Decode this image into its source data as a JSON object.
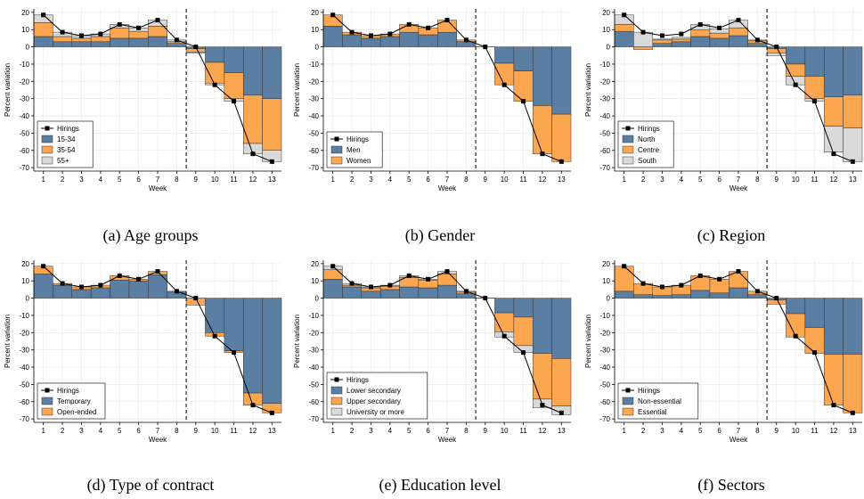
{
  "colors": {
    "blue": "#5b7fa3",
    "orange": "#fca64f",
    "grey": "#d9d9d9",
    "line": "#000000",
    "grid": "#e6e6e6"
  },
  "chart_data": [
    {
      "type": "bar",
      "caption": "(a) Age groups",
      "xlabel": "Week",
      "ylabel": "Percent variation",
      "ylim": [
        -72,
        22
      ],
      "yticks": [
        20,
        10,
        0,
        -10,
        -20,
        -30,
        -40,
        -50,
        -60,
        -70
      ],
      "categories": [
        "1",
        "2",
        "3",
        "4",
        "5",
        "6",
        "7",
        "8",
        "9",
        "10",
        "11",
        "12",
        "13"
      ],
      "vline_after": 8,
      "legend_position": "bottom-left",
      "line": {
        "name": "Hirings",
        "values": [
          18.5,
          8.5,
          6.5,
          7.5,
          13,
          11,
          15.5,
          4,
          0,
          -22,
          -31.5,
          -62,
          -66.5
        ]
      },
      "series": [
        {
          "name": "15-34",
          "color": "blue",
          "values": [
            6,
            3,
            3,
            3,
            5,
            5,
            6,
            2,
            -1,
            -9,
            -15,
            -28,
            -30
          ]
        },
        {
          "name": "35-54",
          "color": "orange",
          "values": [
            8,
            3,
            2,
            3,
            6,
            4,
            6,
            1,
            -2,
            -12,
            -15,
            -28,
            -30
          ]
        },
        {
          "name": "55+",
          "color": "grey",
          "values": [
            4.5,
            2.5,
            1.5,
            1.5,
            2,
            2,
            3.5,
            1,
            -0.5,
            -1,
            -1.5,
            -6,
            -6.5
          ]
        }
      ]
    },
    {
      "type": "bar",
      "caption": "(b) Gender",
      "xlabel": "Week",
      "ylabel": "Percent variation",
      "ylim": [
        -72,
        22
      ],
      "yticks": [
        20,
        10,
        0,
        -10,
        -20,
        -30,
        -40,
        -50,
        -60,
        -70
      ],
      "categories": [
        "1",
        "2",
        "3",
        "4",
        "5",
        "6",
        "7",
        "8",
        "9",
        "10",
        "11",
        "12",
        "13"
      ],
      "vline_after": 8,
      "legend_position": "bottom-left",
      "line": {
        "name": "Hirings",
        "values": [
          18.5,
          8.5,
          6.5,
          7.5,
          13,
          11,
          15.5,
          4,
          0,
          -22,
          -31.5,
          -62,
          -66.5
        ]
      },
      "series": [
        {
          "name": "Men",
          "color": "blue",
          "values": [
            12,
            7,
            5,
            6,
            8.5,
            7,
            8.5,
            3,
            0,
            -9.5,
            -14,
            -34,
            -39
          ]
        },
        {
          "name": "Women",
          "color": "orange",
          "values": [
            6.5,
            1.5,
            1.5,
            1.5,
            4.5,
            4,
            7,
            1,
            0,
            -12.5,
            -17.5,
            -28,
            -27.5
          ]
        }
      ]
    },
    {
      "type": "bar",
      "caption": "(c) Region",
      "xlabel": "Week",
      "ylabel": "Percent variation",
      "ylim": [
        -72,
        22
      ],
      "yticks": [
        20,
        10,
        0,
        -10,
        -20,
        -30,
        -40,
        -50,
        -60,
        -70
      ],
      "categories": [
        "1",
        "2",
        "3",
        "4",
        "5",
        "6",
        "7",
        "8",
        "9",
        "10",
        "11",
        "12",
        "13"
      ],
      "vline_after": 8,
      "legend_position": "bottom-left",
      "line": {
        "name": "Hirings",
        "values": [
          18.5,
          8.5,
          6.5,
          7.5,
          13,
          11,
          15.5,
          4,
          0,
          -22,
          -31.5,
          -62,
          -66.5
        ]
      },
      "series": [
        {
          "name": "North",
          "color": "blue",
          "values": [
            9,
            0,
            2,
            3,
            6,
            5,
            6.5,
            2,
            -1,
            -10,
            -17,
            -29,
            -28
          ]
        },
        {
          "name": "Centre",
          "color": "orange",
          "values": [
            4,
            -1.5,
            2,
            1.5,
            4,
            3,
            4.5,
            1.5,
            -2.5,
            -7,
            -13,
            -17,
            -19
          ]
        },
        {
          "name": "South",
          "color": "grey",
          "values": [
            5.5,
            8.5,
            0.5,
            1,
            3,
            2.5,
            4.5,
            0.5,
            -1.5,
            -5,
            -1.5,
            -15,
            -19.5
          ]
        }
      ]
    },
    {
      "type": "bar",
      "caption": "(d) Type of contract",
      "xlabel": "Week",
      "ylabel": "Percent variation",
      "ylim": [
        -72,
        22
      ],
      "yticks": [
        20,
        10,
        0,
        -10,
        -20,
        -30,
        -40,
        -50,
        -60,
        -70
      ],
      "categories": [
        "1",
        "2",
        "3",
        "4",
        "5",
        "6",
        "7",
        "8",
        "9",
        "10",
        "11",
        "12",
        "13"
      ],
      "vline_after": 8,
      "legend_position": "bottom-left",
      "line": {
        "name": "Hirings",
        "values": [
          18.5,
          8.5,
          6.5,
          7.5,
          13,
          11,
          15.5,
          4,
          0,
          -22,
          -31.5,
          -62,
          -66.5
        ]
      },
      "series": [
        {
          "name": "Temporary",
          "color": "blue",
          "values": [
            14,
            7.5,
            5,
            6,
            10.5,
            10,
            13.5,
            3.5,
            0,
            -20,
            -30.5,
            -55,
            -61
          ]
        },
        {
          "name": "Open-ended",
          "color": "orange",
          "values": [
            4.5,
            1,
            1.5,
            1.5,
            2.5,
            1,
            2,
            0.5,
            -4,
            -2,
            -1,
            -7,
            -5.5
          ]
        }
      ]
    },
    {
      "type": "bar",
      "caption": "(e) Education level",
      "xlabel": "Week",
      "ylabel": "Percent variation",
      "ylim": [
        -72,
        22
      ],
      "yticks": [
        20,
        10,
        0,
        -10,
        -20,
        -30,
        -40,
        -50,
        -60,
        -70
      ],
      "categories": [
        "1",
        "2",
        "3",
        "4",
        "5",
        "6",
        "7",
        "8",
        "9",
        "10",
        "11",
        "12",
        "13"
      ],
      "vline_after": 8,
      "legend_position": "bottom-left",
      "line": {
        "name": "Hirings",
        "values": [
          18.5,
          8.5,
          6.5,
          7.5,
          13,
          11,
          15.5,
          4,
          0,
          -22,
          -31.5,
          -62,
          -66.5
        ]
      },
      "series": [
        {
          "name": "Lower secondary",
          "color": "blue",
          "values": [
            11,
            6.5,
            4,
            5,
            6.5,
            6,
            7.5,
            2.5,
            0,
            -8.5,
            -11,
            -32,
            -35
          ]
        },
        {
          "name": "Upper secondary",
          "color": "orange",
          "values": [
            5.5,
            1,
            2,
            2,
            5.5,
            4.5,
            6.5,
            1,
            0,
            -11,
            -16.5,
            -26.5,
            -27.5
          ]
        },
        {
          "name": "University or more",
          "color": "grey",
          "values": [
            2,
            1,
            0.5,
            0.5,
            1,
            0.5,
            1.5,
            0.5,
            0,
            -3,
            -4,
            -5,
            -5
          ]
        }
      ]
    },
    {
      "type": "bar",
      "caption": "(f) Sectors",
      "xlabel": "Week",
      "ylabel": "Percent variation",
      "ylim": [
        -72,
        22
      ],
      "yticks": [
        20,
        10,
        0,
        -10,
        -20,
        -30,
        -40,
        -50,
        -60,
        -70
      ],
      "categories": [
        "1",
        "2",
        "3",
        "4",
        "5",
        "6",
        "7",
        "8",
        "9",
        "10",
        "11",
        "12",
        "13"
      ],
      "vline_after": 8,
      "legend_position": "bottom-left",
      "line": {
        "name": "Hirings",
        "values": [
          18.5,
          8.5,
          6.5,
          7.5,
          13,
          11,
          15.5,
          4,
          0,
          -22,
          -31.5,
          -62,
          -66.5
        ]
      },
      "series": [
        {
          "name": "Non-essential",
          "color": "blue",
          "values": [
            4,
            2,
            1.5,
            2,
            4.5,
            3,
            6,
            2,
            -1,
            -9,
            -17,
            -32.5,
            -32.5
          ]
        },
        {
          "name": "Essential",
          "color": "orange",
          "values": [
            14.5,
            6.5,
            5,
            5.5,
            8.5,
            8,
            9.5,
            2,
            -2.5,
            -13.5,
            -15,
            -29.5,
            -34
          ]
        }
      ]
    }
  ]
}
